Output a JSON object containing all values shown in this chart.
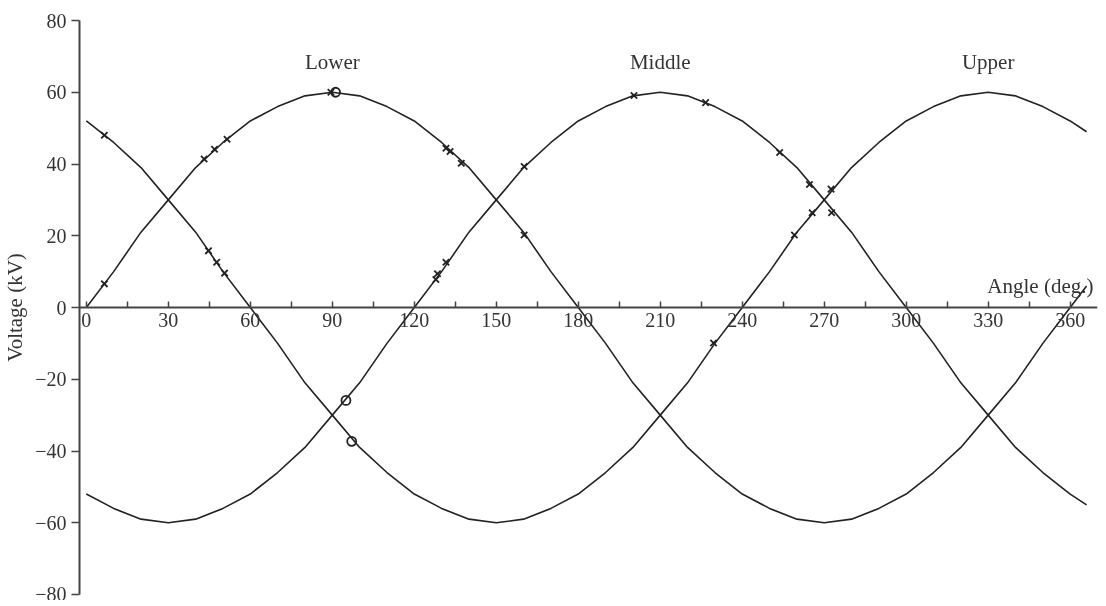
{
  "chart_data": {
    "type": "line",
    "xlabel": "Angle (deg.)",
    "ylabel": "Voltage (kV)",
    "x": [
      0,
      10,
      20,
      30,
      40,
      50,
      60,
      70,
      80,
      90,
      100,
      110,
      120,
      130,
      140,
      150,
      160,
      170,
      180,
      190,
      200,
      210,
      220,
      230,
      240,
      250,
      260,
      270,
      280,
      290,
      300,
      310,
      320,
      330,
      340,
      350,
      360,
      366
    ],
    "series": [
      {
        "name": "Lower",
        "color": "#222222",
        "marker": "none",
        "values": [
          0,
          10,
          21,
          30,
          39,
          46,
          52,
          56,
          59,
          60,
          59,
          56,
          52,
          46,
          39,
          30,
          21,
          10,
          0,
          -10,
          -21,
          -30,
          -39,
          -46,
          -52,
          -56,
          -59,
          -60,
          -59,
          -56,
          -52,
          -46,
          -39,
          -30,
          -21,
          -10,
          0,
          6
        ]
      },
      {
        "name": "Middle",
        "color": "#222222",
        "marker": "none",
        "values": [
          -52,
          -56,
          -59,
          -60,
          -59,
          -56,
          -52,
          -46,
          -39,
          -30,
          -21,
          -10,
          0,
          10,
          21,
          30,
          39,
          46,
          52,
          56,
          59,
          60,
          59,
          56,
          52,
          46,
          39,
          30,
          21,
          10,
          0,
          -10,
          -21,
          -30,
          -39,
          -46,
          -52,
          -55
        ]
      },
      {
        "name": "Upper",
        "color": "#222222",
        "marker": "none",
        "values": [
          52,
          46,
          39,
          30,
          21,
          10,
          0,
          -10,
          -21,
          -30,
          -39,
          -46,
          -52,
          -56,
          -59,
          -60,
          -59,
          -56,
          -52,
          -46,
          -39,
          -30,
          -21,
          -10,
          0,
          10,
          21,
          30,
          39,
          46,
          52,
          56,
          59,
          60,
          59,
          56,
          52,
          49
        ]
      },
      {
        "type": "scatter",
        "marker": "cross",
        "color": "#222222",
        "x": [
          6.6,
          6.6,
          43.1,
          46.9,
          51.5,
          44.7,
          47.7,
          50.6,
          89.5,
          131.6,
          133.1,
          137.2,
          160.2,
          160.2,
          131.6,
          128.5,
          127.9,
          200.4,
          226.6,
          229.5,
          253.7,
          264.6,
          272.5,
          265.6,
          272.7,
          259.1
        ],
        "values": [
          48,
          6.6,
          41.4,
          44.1,
          46.9,
          15.8,
          12.6,
          9.6,
          60,
          44.4,
          43.5,
          40.2,
          39.3,
          20.2,
          12.6,
          9.4,
          7.8,
          59.1,
          57.1,
          -9.9,
          43.2,
          34.3,
          33,
          26.4,
          26.4,
          20.2
        ]
      },
      {
        "type": "scatter",
        "marker": "circle",
        "color": "#222222",
        "x": [
          91.2,
          95,
          97.1
        ],
        "values": [
          60,
          -25.9,
          -37.3
        ]
      }
    ],
    "xlim": [
      -2.5,
      370
    ],
    "ylim": [
      -80,
      80
    ],
    "xticks": [
      0,
      {
        "value": 15,
        "label": null
      },
      30,
      {
        "value": 45,
        "label": null
      },
      60,
      {
        "value": 75,
        "label": null
      },
      90,
      {
        "value": 105,
        "label": null
      },
      120,
      {
        "value": 135,
        "label": null
      },
      150,
      {
        "value": 165,
        "label": null
      },
      180,
      {
        "value": 195,
        "label": null
      },
      210,
      {
        "value": 225,
        "label": null
      },
      240,
      {
        "value": 255,
        "label": null
      },
      270,
      {
        "value": 285,
        "label": null
      },
      300,
      {
        "value": 315,
        "label": null
      },
      330,
      {
        "value": 345,
        "label": null
      },
      360
    ],
    "yticks": [
      {
        "value": -80,
        "label": "−80"
      },
      {
        "value": -60,
        "label": "−60"
      },
      {
        "value": -40,
        "label": "−40"
      },
      {
        "value": -20,
        "label": "−20"
      },
      0,
      20,
      40,
      60,
      80
    ],
    "grid": false,
    "legend": false,
    "line_style": "solid"
  }
}
